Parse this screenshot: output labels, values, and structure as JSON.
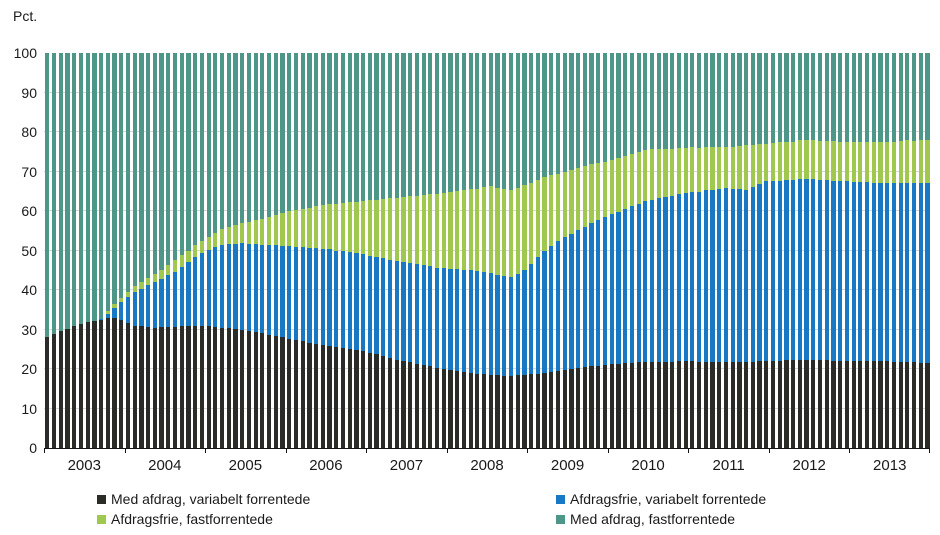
{
  "chart_data": {
    "type": "bar",
    "stacked": true,
    "stack_total": 100,
    "unit_label": "Pct.",
    "x_frequency": "monthly",
    "x_start": "2003-01",
    "x_end": "2013-12",
    "year_labels": [
      "2003",
      "2004",
      "2005",
      "2006",
      "2007",
      "2008",
      "2009",
      "2010",
      "2011",
      "2012",
      "2013"
    ],
    "y_ticks": [
      0,
      10,
      20,
      30,
      40,
      50,
      60,
      70,
      80,
      90,
      100
    ],
    "ylim": [
      0,
      100
    ],
    "grid": "horizontal",
    "axis_color": "#141414",
    "gridline_color": "#d9d9d9",
    "series": [
      {
        "name": "Med afdrag, variabelt forrentede",
        "color": "#2b2b28",
        "values": [
          28.0,
          28.8,
          29.5,
          30.2,
          30.8,
          31.5,
          31.8,
          32.2,
          32.5,
          32.8,
          33.0,
          32.3,
          31.7,
          31.0,
          30.8,
          30.7,
          30.5,
          30.6,
          30.6,
          30.7,
          30.8,
          30.9,
          30.9,
          31.0,
          30.8,
          30.7,
          30.5,
          30.3,
          30.2,
          30.0,
          29.7,
          29.3,
          29.0,
          28.7,
          28.3,
          28.0,
          27.7,
          27.3,
          27.0,
          26.7,
          26.3,
          26.0,
          25.8,
          25.5,
          25.3,
          25.0,
          24.8,
          24.5,
          24.1,
          23.7,
          23.3,
          22.8,
          22.4,
          22.0,
          21.7,
          21.3,
          21.0,
          20.7,
          20.3,
          20.0,
          19.8,
          19.5,
          19.3,
          19.0,
          18.8,
          18.7,
          18.5,
          18.4,
          18.3,
          18.2,
          18.4,
          18.5,
          18.7,
          18.8,
          19.0,
          19.3,
          19.5,
          19.8,
          20.0,
          20.3,
          20.5,
          20.7,
          20.8,
          21.0,
          21.2,
          21.3,
          21.5,
          21.6,
          21.7,
          21.8,
          21.8,
          21.9,
          21.9,
          21.9,
          22.0,
          22.0,
          22.0,
          21.9,
          21.9,
          21.9,
          21.8,
          21.8,
          21.8,
          21.9,
          21.9,
          21.9,
          22.0,
          22.0,
          22.1,
          22.1,
          22.2,
          22.2,
          22.3,
          22.3,
          22.3,
          22.2,
          22.2,
          22.1,
          22.1,
          22.0,
          22.0,
          22.0,
          22.0,
          22.0,
          22.0,
          22.0,
          21.9,
          21.8,
          21.8,
          21.7,
          21.6,
          21.5
        ]
      },
      {
        "name": "Afdragsfrie, variabelt forrentede",
        "color": "#1878c3",
        "values": [
          0,
          0,
          0,
          0,
          0,
          0,
          0,
          0,
          0.2,
          1.2,
          2.5,
          4.7,
          6.6,
          8.5,
          9.5,
          10.5,
          11.5,
          12.2,
          13.1,
          13.8,
          15.0,
          16.1,
          17.4,
          18.5,
          19.4,
          20.1,
          21.0,
          21.3,
          21.5,
          21.8,
          22.0,
          22.3,
          22.5,
          22.7,
          23.0,
          23.2,
          23.4,
          23.7,
          23.9,
          24.0,
          24.3,
          24.5,
          24.5,
          24.5,
          24.5,
          24.5,
          24.5,
          24.5,
          24.6,
          24.6,
          24.7,
          24.9,
          24.9,
          25.0,
          25.1,
          25.2,
          25.3,
          25.3,
          25.4,
          25.5,
          25.6,
          25.8,
          25.8,
          26.0,
          25.9,
          25.9,
          25.8,
          25.5,
          25.3,
          25.0,
          25.7,
          26.5,
          28.0,
          29.5,
          31.0,
          31.9,
          32.8,
          33.7,
          34.3,
          34.9,
          35.5,
          36.2,
          36.8,
          37.5,
          38.0,
          38.5,
          39.0,
          39.6,
          40.1,
          40.7,
          41.0,
          41.3,
          41.6,
          41.9,
          42.2,
          42.5,
          42.8,
          43.0,
          43.3,
          43.5,
          43.8,
          44.0,
          43.8,
          43.6,
          43.4,
          44.1,
          44.8,
          45.5,
          45.5,
          45.6,
          45.6,
          45.6,
          45.7,
          45.7,
          45.7,
          45.6,
          45.6,
          45.6,
          45.5,
          45.5,
          45.4,
          45.3,
          45.3,
          45.2,
          45.1,
          45.0,
          45.1,
          45.2,
          45.3,
          45.3,
          45.4,
          45.5
        ]
      },
      {
        "name": "Afdragsfrie, fastforrentede",
        "color": "#a0c84e",
        "values": [
          0,
          0,
          0,
          0,
          0,
          0,
          0,
          0,
          0,
          0.8,
          0.9,
          1.0,
          1.2,
          1.5,
          1.7,
          1.8,
          2.0,
          2.3,
          2.7,
          3.0,
          3.0,
          3.0,
          3.0,
          3.0,
          3.3,
          3.7,
          4.0,
          4.4,
          4.8,
          5.2,
          5.6,
          6.1,
          6.5,
          7.1,
          7.7,
          8.3,
          8.8,
          9.2,
          9.7,
          10.1,
          10.6,
          11.0,
          11.4,
          11.8,
          12.3,
          12.7,
          13.1,
          13.5,
          14.0,
          14.5,
          15.0,
          15.5,
          16.0,
          16.5,
          16.9,
          17.3,
          17.8,
          18.2,
          18.6,
          19.0,
          19.4,
          19.8,
          20.1,
          20.5,
          21.0,
          21.5,
          22.0,
          22.0,
          22.1,
          22.1,
          21.8,
          21.5,
          20.5,
          19.5,
          18.5,
          17.8,
          17.2,
          16.5,
          16.2,
          15.8,
          15.5,
          15.0,
          14.5,
          14.0,
          13.8,
          13.7,
          13.5,
          13.3,
          13.2,
          13.0,
          12.8,
          12.5,
          12.3,
          12.0,
          11.8,
          11.5,
          11.3,
          11.1,
          11.0,
          10.8,
          10.6,
          10.4,
          10.7,
          11.0,
          11.3,
          10.7,
          10.1,
          9.5,
          9.6,
          9.7,
          9.8,
          9.8,
          9.9,
          10.0,
          10.0,
          10.0,
          10.0,
          10.0,
          10.0,
          10.0,
          10.1,
          10.2,
          10.3,
          10.3,
          10.4,
          10.5,
          10.6,
          10.7,
          10.8,
          10.8,
          10.9,
          11.0
        ]
      },
      {
        "name": "Med afdrag, fastforrentede",
        "color": "#4e9687",
        "remainder_to_100": true,
        "values": [
          72.0,
          71.2,
          70.5,
          69.8,
          69.2,
          68.5,
          68.2,
          67.8,
          67.3,
          65.2,
          63.6,
          62.0,
          60.5,
          59.0,
          58.0,
          57.0,
          56.0,
          54.9,
          53.6,
          52.5,
          51.2,
          50.0,
          48.7,
          47.5,
          46.5,
          45.5,
          44.5,
          44.0,
          43.5,
          43.0,
          42.7,
          42.3,
          42.0,
          41.5,
          41.0,
          40.5,
          40.1,
          39.8,
          39.4,
          39.2,
          38.8,
          38.5,
          38.3,
          38.2,
          37.9,
          37.8,
          37.6,
          37.5,
          37.3,
          37.2,
          37.0,
          36.8,
          36.7,
          36.5,
          36.3,
          36.2,
          35.9,
          35.8,
          35.7,
          35.5,
          35.2,
          34.9,
          34.8,
          34.5,
          34.3,
          33.9,
          33.7,
          34.1,
          34.3,
          34.7,
          34.1,
          33.5,
          32.8,
          32.2,
          31.5,
          31.0,
          30.5,
          30.0,
          29.5,
          29.0,
          28.5,
          28.1,
          27.9,
          27.5,
          27.0,
          26.5,
          26.0,
          25.5,
          25.0,
          24.5,
          24.4,
          24.3,
          24.2,
          24.2,
          24.0,
          24.0,
          23.9,
          24.0,
          23.8,
          23.8,
          23.8,
          23.8,
          23.7,
          23.5,
          23.4,
          23.3,
          23.1,
          23.0,
          22.8,
          22.6,
          22.4,
          22.4,
          22.1,
          22.0,
          22.0,
          22.2,
          22.2,
          22.3,
          22.4,
          22.5,
          22.5,
          22.5,
          22.4,
          22.5,
          22.5,
          22.5,
          22.4,
          22.3,
          22.1,
          22.2,
          22.1,
          22.0
        ]
      }
    ],
    "legend": {
      "position": "bottom",
      "entries": [
        {
          "label": "Med afdrag, variabelt forrentede",
          "color": "#2b2b28"
        },
        {
          "label": "Afdragsfrie, variabelt forrentede",
          "color": "#1878c3"
        },
        {
          "label": "Afdragsfrie, fastforrentede",
          "color": "#a0c84e"
        },
        {
          "label": "Med afdrag, fastforrentede",
          "color": "#4e9687"
        }
      ]
    }
  }
}
